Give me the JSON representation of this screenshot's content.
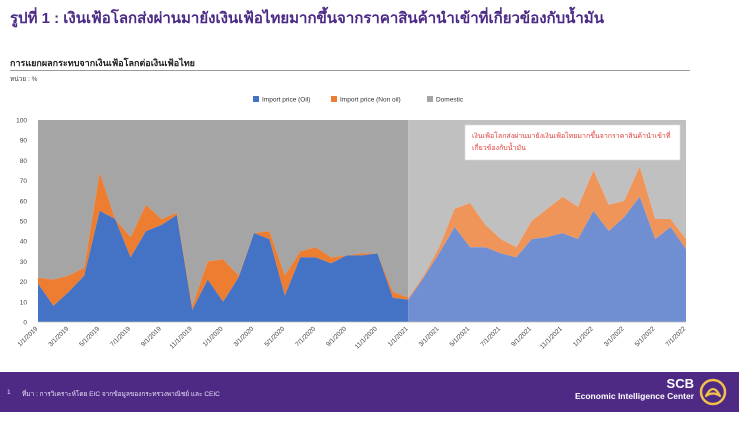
{
  "header": {
    "title": "รูปที่ 1 : เงินเฟ้อโลกส่งผ่านมายังเงินเฟ้อไทยมากขึ้นจากราคาสินค้านำเข้าที่เกี่ยวข้องกับน้ำมัน",
    "chart_title": "การแยกผลกระทบจากเงินเฟ้อโลกต่อเงินเฟ้อไทย",
    "unit": "หน่วย : %"
  },
  "footer": {
    "page_number": "1",
    "source": "ที่มา : การวิเคราะห์โดย EIC จากข้อมูลของกระทรวงพาณิชย์ และ CEIC",
    "brand_name": "SCB",
    "brand_sub": "Economic Intelligence Center",
    "logo_icon": "scb-logo-icon"
  },
  "colors": {
    "oil": "#4472c4",
    "non_oil": "#ed7d31",
    "domestic_before": "#a5a5a5",
    "domestic_after": "#c0c0c0",
    "oil_after": "#6f8fd2",
    "non_oil_after": "#f0955a",
    "annotation": "#e0403a",
    "title": "#4b2a85",
    "footer": "#4e2a84"
  },
  "chart_data": {
    "type": "area",
    "stacked": true,
    "ylim": [
      0,
      100
    ],
    "yticks": [
      0,
      10,
      20,
      30,
      40,
      50,
      60,
      70,
      80,
      90,
      100
    ],
    "xlabels": [
      "1/1/2019",
      "3/1/2019",
      "5/1/2019",
      "7/1/2019",
      "9/1/2019",
      "11/1/2019",
      "1/1/2020",
      "3/1/2020",
      "5/1/2020",
      "7/1/2020",
      "9/1/2020",
      "11/1/2020",
      "1/1/2021",
      "3/1/2021",
      "5/1/2021",
      "7/1/2021",
      "9/1/2021",
      "11/1/2021",
      "1/1/2022",
      "3/1/2022",
      "5/1/2022",
      "7/1/2022"
    ],
    "legend_position": "top",
    "highlight_from": "1/1/2021",
    "annotation": "เงินเฟ้อโลกส่งผ่านมายังเงินเฟ้อไทยมากขึ้นจากราคาสินค้านำเข้าที่เกี่ยวข้องกับน้ำมัน",
    "series": [
      {
        "name": "Import price (Oil)",
        "values": [
          19,
          8,
          15,
          23,
          55,
          51,
          32,
          45,
          48,
          53,
          6,
          21,
          10,
          22,
          44,
          41,
          13,
          32,
          32,
          29,
          33,
          33,
          34,
          12,
          11,
          22,
          34,
          47,
          37,
          37,
          34,
          32,
          41,
          42,
          44,
          41,
          55,
          45,
          52,
          62,
          41,
          47,
          36
        ]
      },
      {
        "name": "Import price (Non oil)",
        "values": [
          3,
          13,
          8,
          4,
          19,
          0,
          10,
          13,
          3,
          1,
          2,
          9,
          21,
          1,
          0,
          4,
          10,
          3,
          5,
          3,
          0,
          1,
          0,
          3,
          1,
          1,
          3,
          9,
          22,
          11,
          7,
          5,
          9,
          14,
          18,
          16,
          20,
          13,
          8,
          15,
          10,
          4,
          5
        ]
      },
      {
        "name": "Domestic",
        "values": [
          78,
          79,
          77,
          73,
          26,
          49,
          58,
          42,
          49,
          46,
          92,
          70,
          69,
          77,
          56,
          55,
          77,
          65,
          63,
          68,
          67,
          66,
          66,
          85,
          88,
          77,
          63,
          44,
          41,
          52,
          59,
          63,
          50,
          44,
          38,
          43,
          25,
          42,
          40,
          23,
          49,
          49,
          59
        ]
      }
    ]
  }
}
